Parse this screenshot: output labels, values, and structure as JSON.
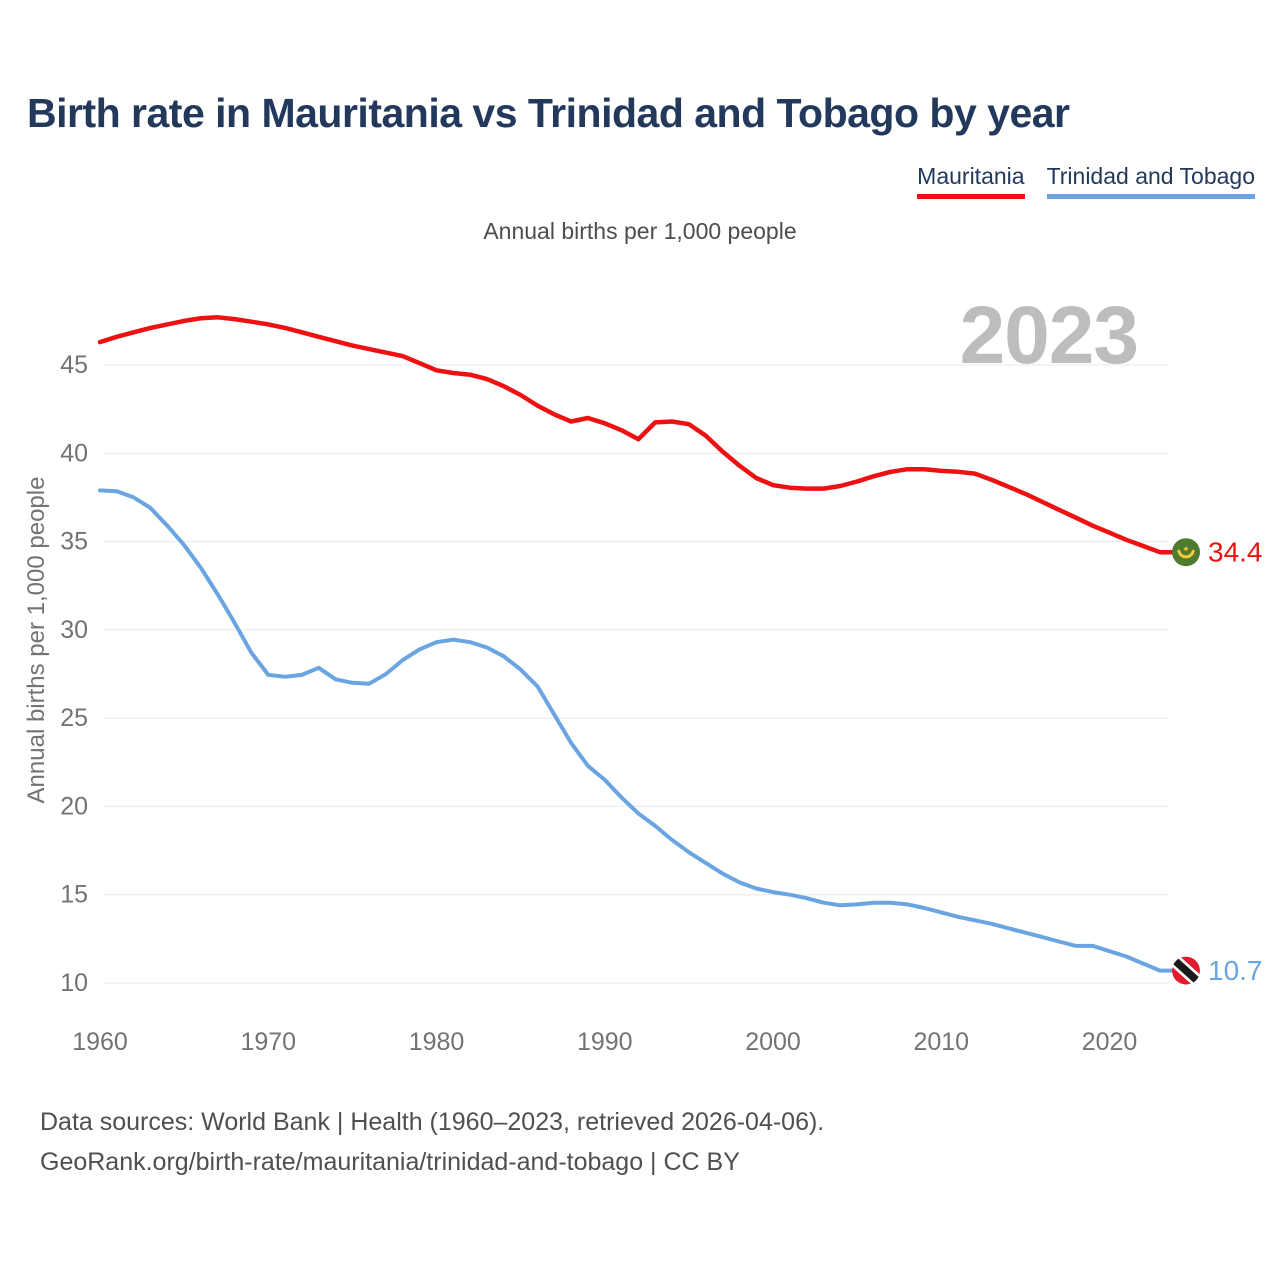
{
  "page": {
    "title": "Birth rate in Mauritania vs Trinidad and Tobago by year",
    "subtitle": "Annual births per 1,000 people",
    "watermark": "2023",
    "footer_line1": "Data sources: World Bank | Health (1960–2023, retrieved 2026-04-06).",
    "footer_line2": "GeoRank.org/birth-rate/mauritania/trinidad-and-tobago | CC BY"
  },
  "legend": {
    "items": [
      {
        "label": "Mauritania",
        "color": "#ee1111"
      },
      {
        "label": "Trinidad and Tobago",
        "color": "#6aa5e2"
      }
    ]
  },
  "chart_data": {
    "type": "line",
    "title": "Birth rate in Mauritania vs Trinidad and Tobago by year",
    "ylabel": "Annual births per 1,000 people",
    "xlabel": "",
    "grid": true,
    "legend_position": "top-right",
    "watermark": "2023",
    "ylim": [
      9.2,
      49
    ],
    "xlim": [
      1960,
      2023
    ],
    "x_ticks": [
      1960,
      1970,
      1980,
      1990,
      2000,
      2010,
      2020
    ],
    "y_ticks": [
      10,
      15,
      20,
      25,
      30,
      35,
      40,
      45
    ],
    "x": [
      1960,
      1961,
      1962,
      1963,
      1964,
      1965,
      1966,
      1967,
      1968,
      1969,
      1970,
      1971,
      1972,
      1973,
      1974,
      1975,
      1976,
      1977,
      1978,
      1979,
      1980,
      1981,
      1982,
      1983,
      1984,
      1985,
      1986,
      1987,
      1988,
      1989,
      1990,
      1991,
      1992,
      1993,
      1994,
      1995,
      1996,
      1997,
      1998,
      1999,
      2000,
      2001,
      2002,
      2003,
      2004,
      2005,
      2006,
      2007,
      2008,
      2009,
      2010,
      2011,
      2012,
      2013,
      2014,
      2015,
      2016,
      2017,
      2018,
      2019,
      2020,
      2021,
      2022,
      2023
    ],
    "series": [
      {
        "name": "Mauritania",
        "color": "#ee1111",
        "line_width": 4.5,
        "end_label": "34.4",
        "flag": "mauritania",
        "flag_colors": {
          "circle": "#4e7b2d",
          "crescent": "#f2ca3d"
        },
        "values": [
          46.3,
          46.6,
          46.85,
          47.1,
          47.3,
          47.5,
          47.65,
          47.7,
          47.6,
          47.45,
          47.3,
          47.1,
          46.85,
          46.6,
          46.35,
          46.1,
          45.9,
          45.7,
          45.5,
          45.1,
          44.7,
          44.55,
          44.45,
          44.2,
          43.8,
          43.3,
          42.7,
          42.2,
          41.8,
          42.0,
          41.7,
          41.3,
          40.8,
          41.75,
          41.8,
          41.65,
          41.0,
          40.1,
          39.3,
          38.6,
          38.2,
          38.05,
          38.0,
          38.0,
          38.15,
          38.4,
          38.7,
          38.95,
          39.1,
          39.1,
          39.0,
          38.95,
          38.85,
          38.5,
          38.1,
          37.7,
          37.25,
          36.8,
          36.35,
          35.9,
          35.5,
          35.1,
          34.75,
          34.4
        ]
      },
      {
        "name": "Trinidad and Tobago",
        "color": "#6aa5e2",
        "line_width": 4,
        "end_label": "10.7",
        "flag": "trinidad-and-tobago",
        "flag_colors": {
          "circle": "#e3192c",
          "stripe": "#1a1a1a",
          "stripe_edge": "#ffffff"
        },
        "values": [
          37.9,
          37.85,
          37.5,
          36.9,
          35.9,
          34.8,
          33.5,
          32.0,
          30.4,
          28.7,
          27.45,
          27.35,
          27.45,
          27.85,
          27.2,
          27.0,
          26.95,
          27.5,
          28.3,
          28.9,
          29.3,
          29.45,
          29.3,
          29.0,
          28.5,
          27.75,
          26.8,
          25.2,
          23.6,
          22.3,
          21.5,
          20.5,
          19.6,
          18.9,
          18.1,
          17.4,
          16.8,
          16.2,
          15.7,
          15.35,
          15.15,
          15.0,
          14.8,
          14.55,
          14.4,
          14.45,
          14.55,
          14.55,
          14.45,
          14.25,
          14.0,
          13.75,
          13.55,
          13.35,
          13.1,
          12.85,
          12.6,
          12.35,
          12.1,
          12.1,
          11.8,
          11.5,
          11.1,
          10.7
        ]
      }
    ]
  }
}
